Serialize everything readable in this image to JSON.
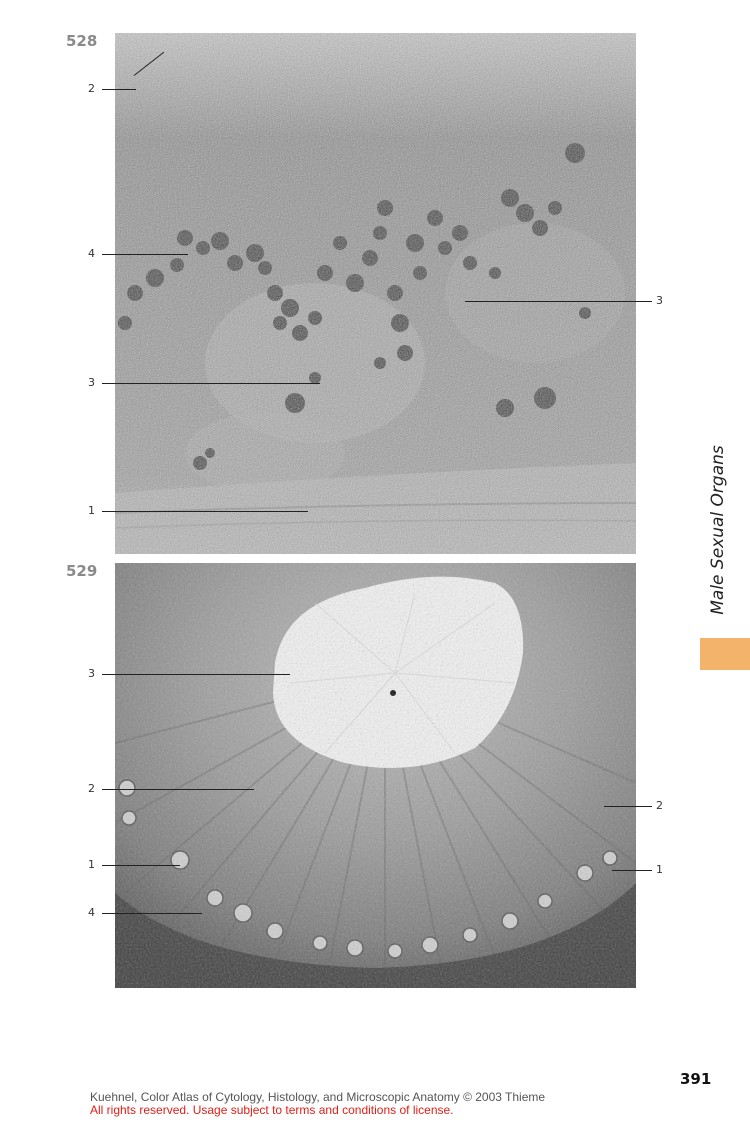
{
  "figures": [
    {
      "number": "528",
      "labels": {
        "l1": "2",
        "l2": "4",
        "l3": "3",
        "l4": "1",
        "r1": "3"
      }
    },
    {
      "number": "529",
      "labels": {
        "l1": "3",
        "l2": "2",
        "l3": "1",
        "l4": "4",
        "r1": "2",
        "r2": "1"
      }
    }
  ],
  "sidebar": {
    "section_title": "Male Sexual Organs",
    "tab_color": "#f3b36a"
  },
  "footer": {
    "page_number": "391",
    "credit_line1": "Kuehnel, Color Atlas of Cytology, Histology, and Microscopic Anatomy © 2003 Thieme",
    "credit_line2": "All rights reserved. Usage subject to terms and conditions of license."
  }
}
